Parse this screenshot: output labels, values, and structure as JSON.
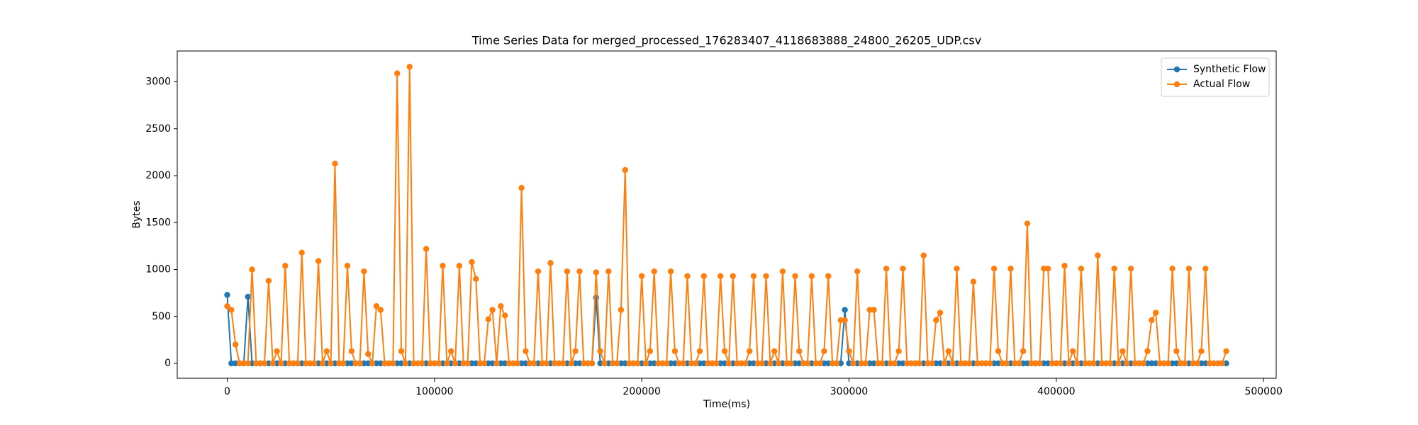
{
  "chart_data": {
    "type": "line",
    "title": "Time Series Data for merged_processed_176283407_4118683888_24800_26205_UDP.csv",
    "x_label": "Time(ms)",
    "y_label": "Bytes",
    "x": [
      0,
      2000,
      4000,
      6000,
      8000,
      10000,
      12000,
      14000,
      16000,
      18000,
      20000,
      22000,
      24000,
      26000,
      28000,
      30000,
      32000,
      34000,
      36000,
      38000,
      40000,
      42000,
      44000,
      46000,
      48000,
      50000,
      52000,
      54000,
      56000,
      58000,
      60000,
      62000,
      64000,
      66000,
      68000,
      70000,
      72000,
      74000,
      76000,
      78000,
      80000,
      82000,
      84000,
      86000,
      88000,
      90000,
      92000,
      94000,
      96000,
      98000,
      100000,
      102000,
      104000,
      106000,
      108000,
      110000,
      112000,
      114000,
      116000,
      118000,
      120000,
      122000,
      124000,
      126000,
      128000,
      130000,
      132000,
      134000,
      136000,
      138000,
      140000,
      142000,
      144000,
      146000,
      148000,
      150000,
      152000,
      154000,
      156000,
      158000,
      160000,
      162000,
      164000,
      166000,
      168000,
      170000,
      172000,
      174000,
      176000,
      178000,
      180000,
      182000,
      184000,
      186000,
      188000,
      190000,
      192000,
      194000,
      196000,
      198000,
      200000,
      202000,
      204000,
      206000,
      208000,
      210000,
      212000,
      214000,
      216000,
      218000,
      220000,
      222000,
      224000,
      226000,
      228000,
      230000,
      232000,
      234000,
      236000,
      238000,
      240000,
      242000,
      244000,
      246000,
      248000,
      250000,
      252000,
      254000,
      256000,
      258000,
      260000,
      262000,
      264000,
      266000,
      268000,
      270000,
      272000,
      274000,
      276000,
      278000,
      280000,
      282000,
      284000,
      286000,
      288000,
      290000,
      292000,
      294000,
      296000,
      298000,
      300000,
      302000,
      304000,
      306000,
      308000,
      310000,
      312000,
      314000,
      316000,
      318000,
      320000,
      322000,
      324000,
      326000,
      328000,
      330000,
      332000,
      334000,
      336000,
      338000,
      340000,
      342000,
      344000,
      346000,
      348000,
      350000,
      352000,
      354000,
      356000,
      358000,
      360000,
      362000,
      364000,
      366000,
      368000,
      370000,
      372000,
      374000,
      376000,
      378000,
      380000,
      382000,
      384000,
      386000,
      388000,
      390000,
      392000,
      394000,
      396000,
      398000,
      400000,
      402000,
      404000,
      406000,
      408000,
      410000,
      412000,
      414000,
      416000,
      418000,
      420000,
      422000,
      424000,
      426000,
      428000,
      430000,
      432000,
      434000,
      436000,
      438000,
      440000,
      442000,
      444000,
      446000,
      448000,
      450000,
      452000,
      454000,
      456000,
      458000,
      460000,
      462000,
      464000,
      466000,
      468000,
      470000,
      472000,
      474000,
      476000,
      478000,
      480000,
      482000
    ],
    "series": [
      {
        "name": "Synthetic Flow",
        "color": "#1f77b4",
        "values": [
          730,
          0,
          0,
          0,
          0,
          710,
          0,
          0,
          0,
          0,
          0,
          0,
          0,
          0,
          0,
          0,
          0,
          0,
          0,
          0,
          0,
          0,
          0,
          0,
          0,
          0,
          0,
          0,
          0,
          0,
          0,
          0,
          0,
          0,
          0,
          0,
          0,
          0,
          0,
          0,
          0,
          0,
          0,
          0,
          0,
          0,
          0,
          0,
          0,
          0,
          0,
          0,
          0,
          0,
          0,
          0,
          0,
          0,
          0,
          0,
          0,
          0,
          0,
          0,
          0,
          0,
          0,
          0,
          0,
          0,
          0,
          0,
          0,
          0,
          0,
          0,
          0,
          0,
          0,
          0,
          0,
          0,
          0,
          0,
          0,
          0,
          0,
          0,
          0,
          700,
          0,
          0,
          0,
          0,
          0,
          0,
          0,
          0,
          0,
          0,
          0,
          0,
          0,
          0,
          0,
          0,
          0,
          0,
          0,
          0,
          0,
          0,
          0,
          0,
          0,
          0,
          0,
          0,
          0,
          0,
          0,
          0,
          0,
          0,
          0,
          0,
          0,
          0,
          0,
          0,
          0,
          0,
          0,
          0,
          0,
          0,
          0,
          0,
          0,
          0,
          0,
          0,
          0,
          0,
          0,
          0,
          0,
          0,
          0,
          570,
          0,
          0,
          0,
          0,
          0,
          0,
          0,
          0,
          0,
          0,
          0,
          0,
          0,
          0,
          0,
          0,
          0,
          0,
          0,
          0,
          0,
          0,
          0,
          0,
          0,
          0,
          0,
          0,
          0,
          0,
          0,
          0,
          0,
          0,
          0,
          0,
          0,
          0,
          0,
          0,
          0,
          0,
          0,
          0,
          0,
          0,
          0,
          0,
          0,
          0,
          0,
          0,
          0,
          0,
          0,
          0,
          0,
          0,
          0,
          0,
          0,
          0,
          0,
          0,
          0,
          0,
          0,
          0,
          0,
          0,
          0,
          0,
          0,
          0,
          0,
          0,
          0,
          0,
          0,
          0,
          0,
          0,
          0,
          0,
          0,
          0,
          0,
          0,
          0,
          0,
          0,
          0
        ]
      },
      {
        "name": "Actual Flow",
        "color": "#ff7f0e",
        "values": [
          610,
          570,
          200,
          0,
          0,
          0,
          1000,
          0,
          0,
          0,
          880,
          0,
          130,
          0,
          1040,
          0,
          0,
          0,
          1180,
          0,
          0,
          0,
          1090,
          0,
          130,
          0,
          2130,
          0,
          0,
          1040,
          130,
          0,
          0,
          980,
          100,
          0,
          610,
          570,
          0,
          0,
          0,
          3090,
          130,
          0,
          3160,
          0,
          0,
          0,
          1220,
          0,
          0,
          0,
          1040,
          0,
          130,
          0,
          1040,
          0,
          0,
          1080,
          900,
          0,
          0,
          470,
          570,
          0,
          610,
          510,
          0,
          0,
          0,
          1870,
          130,
          0,
          0,
          980,
          0,
          0,
          1070,
          0,
          0,
          0,
          980,
          0,
          130,
          980,
          0,
          0,
          0,
          970,
          130,
          0,
          980,
          0,
          0,
          570,
          2060,
          0,
          0,
          0,
          930,
          0,
          130,
          980,
          0,
          0,
          0,
          980,
          130,
          0,
          0,
          930,
          0,
          0,
          130,
          930,
          0,
          0,
          0,
          930,
          130,
          0,
          930,
          0,
          0,
          0,
          130,
          930,
          0,
          0,
          930,
          0,
          130,
          0,
          980,
          0,
          0,
          930,
          130,
          0,
          0,
          930,
          0,
          0,
          130,
          930,
          0,
          0,
          460,
          460,
          130,
          0,
          980,
          0,
          0,
          570,
          570,
          0,
          0,
          1010,
          0,
          0,
          130,
          1010,
          0,
          0,
          0,
          0,
          1150,
          0,
          0,
          460,
          540,
          0,
          130,
          0,
          1010,
          0,
          0,
          0,
          870,
          0,
          0,
          0,
          0,
          1010,
          130,
          0,
          0,
          1010,
          0,
          0,
          130,
          1490,
          0,
          0,
          0,
          1010,
          1010,
          0,
          0,
          0,
          1040,
          0,
          130,
          0,
          1010,
          0,
          0,
          0,
          1150,
          0,
          0,
          0,
          1010,
          0,
          130,
          0,
          1010,
          0,
          0,
          0,
          130,
          460,
          540,
          0,
          0,
          0,
          1010,
          130,
          0,
          0,
          1010,
          0,
          0,
          130,
          1010,
          0,
          0,
          0,
          0,
          130
        ]
      }
    ],
    "xlim": [
      -24100,
      506100
    ],
    "ylim": [
      -158.5,
      3328.5
    ],
    "xticks": [
      0,
      100000,
      200000,
      300000,
      400000,
      500000
    ],
    "yticks": [
      0,
      500,
      1000,
      1500,
      2000,
      2500,
      3000
    ],
    "legend": "upper right",
    "grid": false
  }
}
